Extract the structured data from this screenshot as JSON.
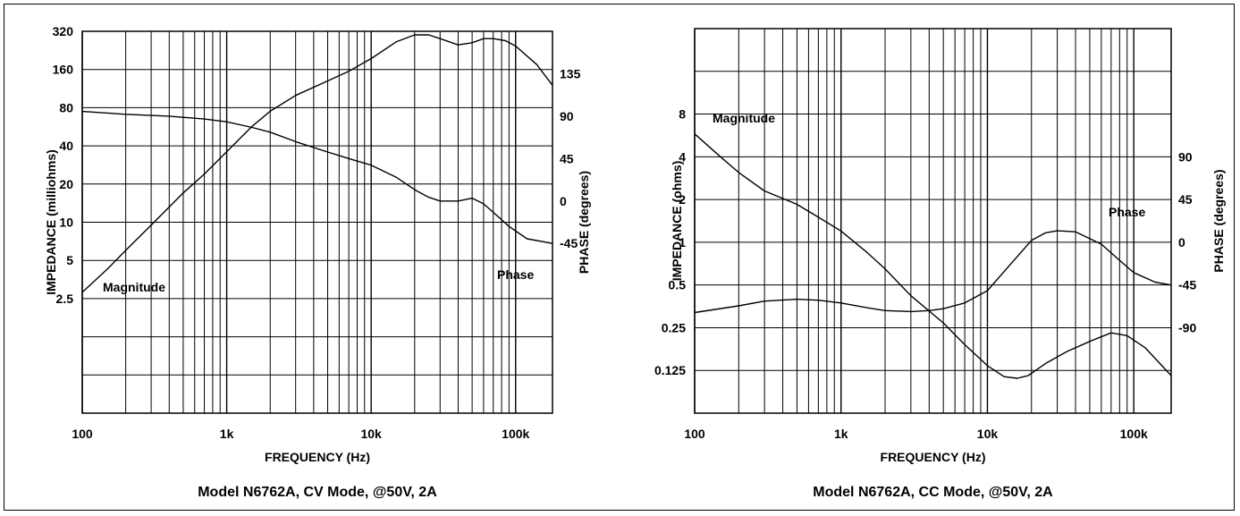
{
  "colors": {
    "background": "#ffffff",
    "ink": "#000000"
  },
  "chart_data": [
    {
      "type": "line",
      "title": "Model N6762A, CV Mode, @50V, 2A",
      "xlabel": "FREQUENCY (Hz)",
      "ylabel": "IMPEDANCE (milliohms)",
      "y2label": "PHASE (degrees)",
      "xscale": "log",
      "xlim": [
        100,
        180000
      ],
      "ylim": [
        0.3125,
        320
      ],
      "y2lim": [
        -225,
        180
      ],
      "x_tick_labels": [
        "100",
        "1k",
        "10k",
        "100k"
      ],
      "x_ticks": [
        100,
        1000,
        10000,
        100000
      ],
      "y_tick_labels": [
        "320",
        "160",
        "80",
        "40",
        "20",
        "10",
        "5",
        "2.5"
      ],
      "y_ticks": [
        320,
        160,
        80,
        40,
        20,
        10,
        5,
        2.5
      ],
      "y2_tick_labels": [
        "135",
        "90",
        "45",
        "0",
        "-45"
      ],
      "y2_ticks": [
        135,
        90,
        45,
        0,
        -45
      ],
      "annotations": [
        {
          "text": "Magnitude",
          "series": "magnitude"
        },
        {
          "text": "Phase",
          "series": "phase"
        }
      ],
      "grid": true,
      "series": [
        {
          "name": "Magnitude",
          "axis": "left",
          "x": [
            100,
            150,
            200,
            300,
            500,
            700,
            1000,
            1500,
            2000,
            3000,
            5000,
            7000,
            10000,
            15000,
            20000,
            25000,
            30000,
            40000,
            50000,
            60000,
            70000,
            85000,
            100000,
            140000,
            180000
          ],
          "y": [
            2.8,
            4.3,
            6.0,
            9.5,
            17,
            24,
            36,
            57,
            75,
            100,
            130,
            155,
            195,
            265,
            300,
            300,
            280,
            250,
            260,
            280,
            280,
            270,
            245,
            175,
            120
          ]
        },
        {
          "name": "Phase",
          "axis": "right",
          "x": [
            100,
            200,
            400,
            700,
            1000,
            1500,
            2000,
            3000,
            5000,
            7000,
            10000,
            15000,
            20000,
            25000,
            30000,
            40000,
            50000,
            60000,
            70000,
            90000,
            120000,
            180000
          ],
          "y": [
            95,
            92,
            90,
            87,
            84,
            78,
            73,
            63,
            52,
            45,
            38,
            25,
            12,
            4,
            0,
            0,
            3,
            -3,
            -12,
            -27,
            -40,
            -45
          ]
        }
      ]
    },
    {
      "type": "line",
      "title": "Model N6762A, CC Mode, @50V, 2A",
      "xlabel": "FREQUENCY (Hz)",
      "ylabel": "IMPEDANCE (ohms)",
      "y2label": "PHASE (degrees)",
      "xscale": "log",
      "xlim": [
        100,
        180000
      ],
      "ylim": [
        0.0625,
        32
      ],
      "y2lim": [
        -180,
        225
      ],
      "x_tick_labels": [
        "100",
        "1k",
        "10k",
        "100k"
      ],
      "x_ticks": [
        100,
        1000,
        10000,
        100000
      ],
      "y_tick_labels": [
        "8",
        "4",
        "2",
        "1",
        "0.5",
        "0.25",
        "0.125"
      ],
      "y_ticks": [
        8,
        4,
        2,
        1,
        0.5,
        0.25,
        0.125
      ],
      "y2_tick_labels": [
        "90",
        "45",
        "0",
        "-45",
        "-90"
      ],
      "y2_ticks": [
        90,
        45,
        0,
        -45,
        -90
      ],
      "annotations": [
        {
          "text": "Magnitude",
          "series": "magnitude"
        },
        {
          "text": "Phase",
          "series": "phase"
        }
      ],
      "grid": true,
      "series": [
        {
          "name": "Magnitude",
          "axis": "left",
          "x": [
            100,
            150,
            200,
            300,
            500,
            700,
            1000,
            1500,
            2000,
            3000,
            5000,
            7000,
            10000,
            13000,
            16000,
            19000,
            25000,
            35000,
            50000,
            70000,
            90000,
            120000,
            180000
          ],
          "y": [
            5.8,
            4.0,
            3.1,
            2.3,
            1.85,
            1.5,
            1.2,
            0.85,
            0.65,
            0.42,
            0.27,
            0.19,
            0.135,
            0.113,
            0.11,
            0.115,
            0.14,
            0.17,
            0.2,
            0.23,
            0.22,
            0.18,
            0.115
          ]
        },
        {
          "name": "Phase",
          "axis": "right",
          "x": [
            100,
            200,
            300,
            500,
            700,
            1000,
            1500,
            2000,
            3000,
            4000,
            5000,
            7000,
            10000,
            15000,
            20000,
            25000,
            30000,
            40000,
            60000,
            80000,
            100000,
            140000,
            180000
          ],
          "y": [
            -74,
            -67,
            -62,
            -60,
            -61,
            -64,
            -69,
            -72,
            -73,
            -72,
            -70,
            -64,
            -51,
            -20,
            2,
            10,
            12,
            11,
            -2,
            -19,
            -32,
            -42,
            -45
          ]
        }
      ]
    }
  ]
}
